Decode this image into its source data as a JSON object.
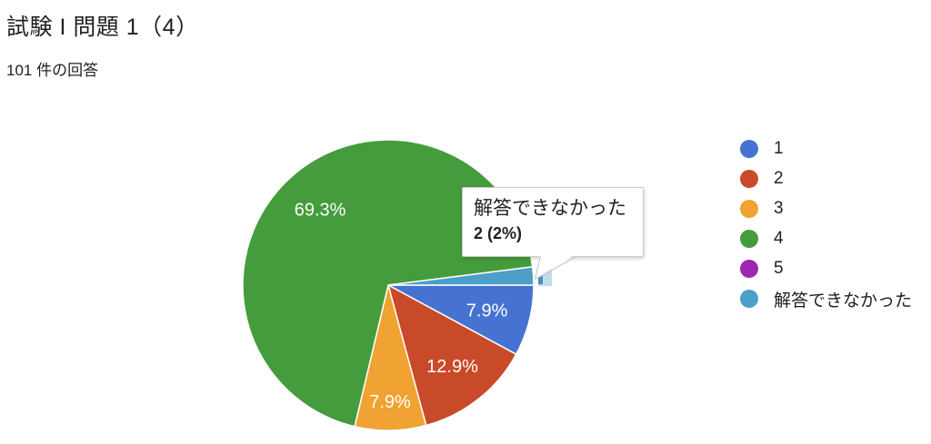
{
  "header": {
    "title": "試験 I 問題 1（4）",
    "subtitle": "101 件の回答"
  },
  "chart_data": {
    "type": "pie",
    "title": "試験 I 問題 1（4）",
    "responses_label": "101 件の回答",
    "categories": [
      "1",
      "2",
      "3",
      "4",
      "5",
      "解答できなかった"
    ],
    "values": [
      8,
      13,
      8,
      70,
      0,
      2
    ],
    "percents": [
      7.9,
      12.9,
      7.9,
      69.3,
      0,
      2
    ],
    "percent_labels": [
      "7.9%",
      "12.9%",
      "7.9%",
      "69.3%",
      "",
      ""
    ],
    "colors": [
      "#4673D2",
      "#C94A28",
      "#F0A232",
      "#459C3C",
      "#9D27B0",
      "#4C9FC8"
    ],
    "slice_label_color": "#ffffff",
    "legend_position": "right",
    "start_angle_deg_clockwise_from_3oclock": 0,
    "tooltip": {
      "category": "解答できなかった",
      "value_text": "2 (2%)"
    },
    "highlight": {
      "outer_color": "#BFDCEC",
      "inner_color": "#4494C0"
    }
  }
}
